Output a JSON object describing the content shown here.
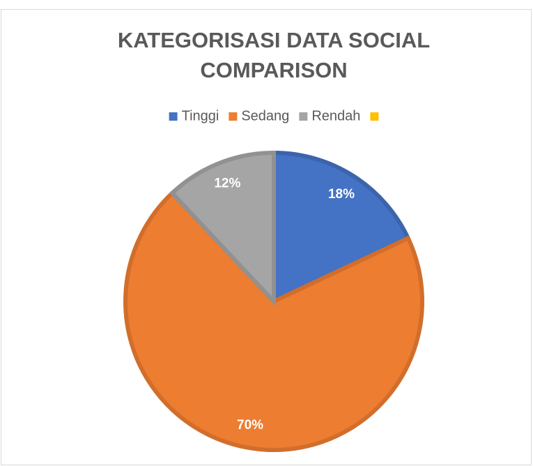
{
  "chart_data": {
    "type": "pie",
    "title": "KATEGORISASI DATA SOCIAL COMPARISON",
    "categories": [
      "Tinggi",
      "Sedang",
      "Rendah",
      null
    ],
    "values": [
      18,
      70,
      12,
      0
    ],
    "value_labels": [
      "18%",
      "70%",
      "12%",
      null
    ],
    "colors": [
      "#4472c4",
      "#ed7d31",
      "#a5a5a5",
      "#ffc000"
    ],
    "legend": "top"
  }
}
